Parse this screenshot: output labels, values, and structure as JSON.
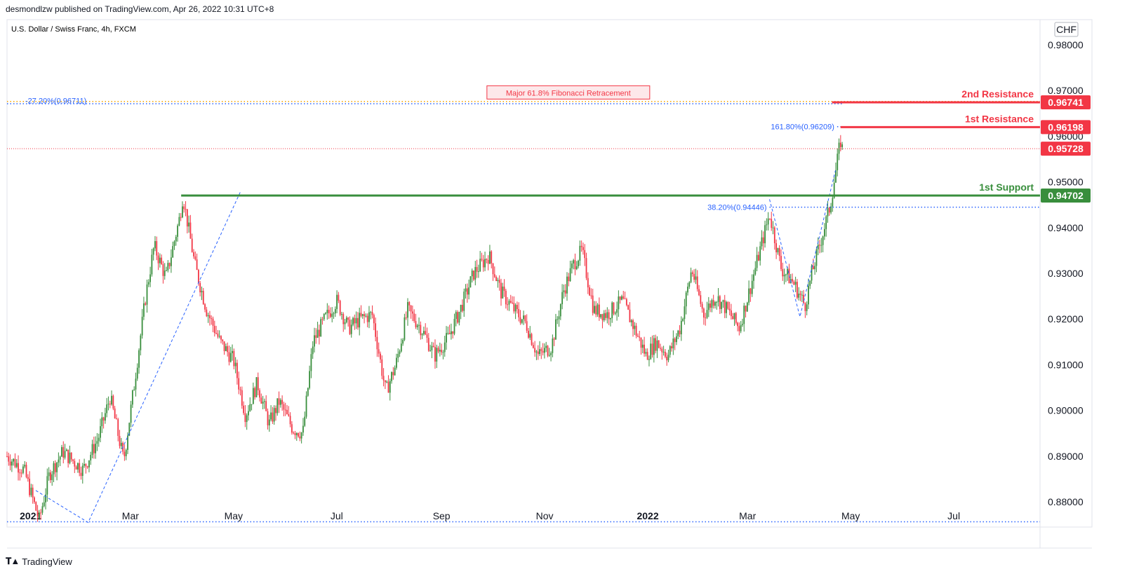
{
  "header": {
    "publisher_line": "desmondlzw published on TradingView.com, Apr 26, 2022 10:31 UTC+8"
  },
  "footer": {
    "brand": "TradingView"
  },
  "chart_data": {
    "type": "candlestick",
    "symbol_line": "U.S. Dollar / Swiss Franc, 4h, FXCM",
    "currency": "CHF",
    "yticks": [
      0.98,
      0.97,
      0.96,
      0.95,
      0.94,
      0.93,
      0.92,
      0.91,
      0.9,
      0.89,
      0.88
    ],
    "ytick_labels": [
      "0.98000",
      "0.97000",
      "0.96000",
      "0.95000",
      "0.94000",
      "0.93000",
      "0.92000",
      "0.91000",
      "0.90000",
      "0.89000",
      "0.88000"
    ],
    "ylim": [
      0.8745,
      0.9855
    ],
    "xlim": [
      "2020-12-18",
      "2022-08-21"
    ],
    "xticks": [
      {
        "date": "2021-01-01",
        "label": "2021",
        "bold": true
      },
      {
        "date": "2021-03-01",
        "label": "Mar",
        "bold": false
      },
      {
        "date": "2021-05-01",
        "label": "May",
        "bold": false
      },
      {
        "date": "2021-07-01",
        "label": "Jul",
        "bold": false
      },
      {
        "date": "2021-09-01",
        "label": "Sep",
        "bold": false
      },
      {
        "date": "2021-11-01",
        "label": "Nov",
        "bold": false
      },
      {
        "date": "2022-01-01",
        "label": "2022",
        "bold": true
      },
      {
        "date": "2022-03-01",
        "label": "Mar",
        "bold": false
      },
      {
        "date": "2022-05-01",
        "label": "May",
        "bold": false
      },
      {
        "date": "2022-07-01",
        "label": "Jul",
        "bold": false
      }
    ],
    "price_path": [
      [
        "2020-12-18",
        0.89
      ],
      [
        "2020-12-28",
        0.887
      ],
      [
        "2021-01-06",
        0.876
      ],
      [
        "2021-01-12",
        0.886
      ],
      [
        "2021-01-20",
        0.891
      ],
      [
        "2021-02-01",
        0.887
      ],
      [
        "2021-02-10",
        0.894
      ],
      [
        "2021-02-17",
        0.903
      ],
      [
        "2021-02-25",
        0.889
      ],
      [
        "2021-03-03",
        0.905
      ],
      [
        "2021-03-10",
        0.925
      ],
      [
        "2021-03-15",
        0.936
      ],
      [
        "2021-03-22",
        0.929
      ],
      [
        "2021-03-30",
        0.942
      ],
      [
        "2021-04-01",
        0.947
      ],
      [
        "2021-04-08",
        0.932
      ],
      [
        "2021-04-15",
        0.922
      ],
      [
        "2021-04-23",
        0.915
      ],
      [
        "2021-05-01",
        0.911
      ],
      [
        "2021-05-08",
        0.899
      ],
      [
        "2021-05-15",
        0.906
      ],
      [
        "2021-05-22",
        0.897
      ],
      [
        "2021-05-28",
        0.902
      ],
      [
        "2021-06-05",
        0.896
      ],
      [
        "2021-06-11",
        0.895
      ],
      [
        "2021-06-17",
        0.915
      ],
      [
        "2021-06-24",
        0.92
      ],
      [
        "2021-07-01",
        0.924
      ],
      [
        "2021-07-08",
        0.918
      ],
      [
        "2021-07-15",
        0.92
      ],
      [
        "2021-07-22",
        0.921
      ],
      [
        "2021-07-30",
        0.904
      ],
      [
        "2021-08-05",
        0.91
      ],
      [
        "2021-08-12",
        0.922
      ],
      [
        "2021-08-20",
        0.918
      ],
      [
        "2021-08-28",
        0.912
      ],
      [
        "2021-09-05",
        0.916
      ],
      [
        "2021-09-12",
        0.922
      ],
      [
        "2021-09-20",
        0.93
      ],
      [
        "2021-09-29",
        0.934
      ],
      [
        "2021-10-06",
        0.926
      ],
      [
        "2021-10-14",
        0.922
      ],
      [
        "2021-10-21",
        0.919
      ],
      [
        "2021-10-28",
        0.912
      ],
      [
        "2021-11-05",
        0.914
      ],
      [
        "2021-11-12",
        0.926
      ],
      [
        "2021-11-18",
        0.932
      ],
      [
        "2021-11-23",
        0.935
      ],
      [
        "2021-11-30",
        0.922
      ],
      [
        "2021-12-08",
        0.921
      ],
      [
        "2021-12-17",
        0.924
      ],
      [
        "2021-12-24",
        0.918
      ],
      [
        "2021-12-31",
        0.912
      ],
      [
        "2022-01-06",
        0.915
      ],
      [
        "2022-01-13",
        0.912
      ],
      [
        "2022-01-20",
        0.918
      ],
      [
        "2022-01-27",
        0.931
      ],
      [
        "2022-02-03",
        0.921
      ],
      [
        "2022-02-10",
        0.925
      ],
      [
        "2022-02-17",
        0.922
      ],
      [
        "2022-02-24",
        0.918
      ],
      [
        "2022-03-02",
        0.926
      ],
      [
        "2022-03-09",
        0.936
      ],
      [
        "2022-03-14",
        0.943
      ],
      [
        "2022-03-21",
        0.931
      ],
      [
        "2022-03-28",
        0.928
      ],
      [
        "2022-04-04",
        0.923
      ],
      [
        "2022-04-08",
        0.93
      ],
      [
        "2022-04-14",
        0.938
      ],
      [
        "2022-04-19",
        0.945
      ],
      [
        "2022-04-22",
        0.952
      ],
      [
        "2022-04-25",
        0.959
      ],
      [
        "2022-04-26",
        0.9573
      ]
    ],
    "horizontal_levels": [
      {
        "name": "2nd Resistance",
        "value": 0.96741,
        "tag": "0.96741",
        "color": "#f23645",
        "start": "2022-04-20"
      },
      {
        "name": "1st Resistance",
        "value": 0.96198,
        "tag": "0.96198",
        "color": "#f23645",
        "start": "2022-04-25"
      },
      {
        "name": "1st Support",
        "value": 0.94702,
        "tag": "0.94702",
        "color": "#388e3c",
        "start": "2021-03-31"
      }
    ],
    "current_price": {
      "value": 0.95728,
      "tag": "0.95728",
      "color": "#f23645"
    },
    "fib_lines": [
      {
        "label": "-27.20%(0.96711)",
        "value": 0.96711,
        "color": "#2962ff",
        "start": "2020-12-18",
        "end": "2022-04-27"
      },
      {
        "label": "161.80%(0.96209)",
        "value": 0.96209,
        "color": "#2962ff",
        "start": "2022-04-23",
        "end": "2022-04-27"
      },
      {
        "label": "38.20%(0.94446)",
        "value": 0.94446,
        "color": "#2962ff",
        "start": "2022-03-14",
        "end": "2022-08-21"
      },
      {
        "label": "",
        "value": 0.87565,
        "color": "#2962ff",
        "start": "2020-12-18",
        "end": "2022-08-21"
      }
    ],
    "orange_line": {
      "value": 0.9676,
      "color": "#f7a600"
    },
    "annotation": {
      "text": "Major 61.8% Fibonacci Retracement",
      "date": "2021-11-15",
      "value": 0.9695
    },
    "dashed_trend_lines": [
      [
        [
          "2021-01-04",
          0.8825
        ],
        [
          "2021-02-04",
          0.8755
        ],
        [
          "2021-05-05",
          0.9478
        ]
      ],
      [
        [
          "2022-03-14",
          0.9462
        ],
        [
          "2022-04-01",
          0.9205
        ],
        [
          "2022-04-22",
          0.9525
        ]
      ]
    ]
  }
}
